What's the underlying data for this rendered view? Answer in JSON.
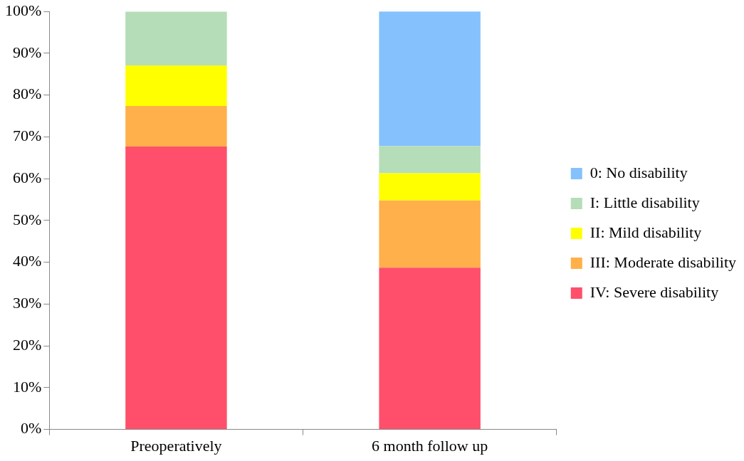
{
  "chart_data": {
    "type": "bar",
    "stacked": true,
    "categories": [
      "Preoperatively",
      "6 month follow up"
    ],
    "series": [
      {
        "name": "IV: Severe disability",
        "color": "#ff4f6b",
        "values": [
          67.7,
          38.7
        ]
      },
      {
        "name": "III: Moderate disability",
        "color": "#ffb04a",
        "values": [
          9.7,
          16.1
        ]
      },
      {
        "name": "II: Mild disability",
        "color": "#ffff00",
        "values": [
          9.7,
          6.5
        ]
      },
      {
        "name": "I: Little disability",
        "color": "#b5ddb8",
        "values": [
          12.9,
          6.5
        ]
      },
      {
        "name": "0: No disability",
        "color": "#85c1fd",
        "values": [
          0,
          32.3
        ]
      }
    ],
    "ylim": [
      0,
      100
    ],
    "yticks": [
      {
        "value": 0,
        "label": "0%"
      },
      {
        "value": 10,
        "label": "10%"
      },
      {
        "value": 20,
        "label": "20%"
      },
      {
        "value": 30,
        "label": "30%"
      },
      {
        "value": 40,
        "label": "40%"
      },
      {
        "value": 50,
        "label": "50%"
      },
      {
        "value": 60,
        "label": "60%"
      },
      {
        "value": 70,
        "label": "70%"
      },
      {
        "value": 80,
        "label": "80%"
      },
      {
        "value": 90,
        "label": "90%"
      },
      {
        "value": 100,
        "label": "100%"
      }
    ],
    "grid": false,
    "legend": "right"
  }
}
